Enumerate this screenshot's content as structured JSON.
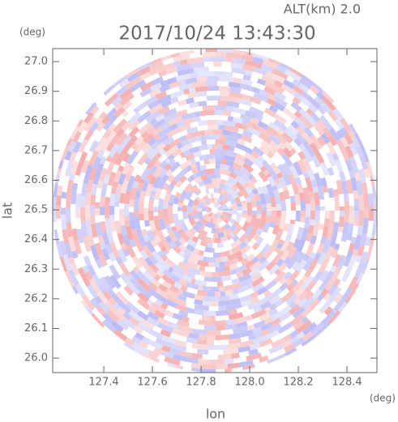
{
  "chart_data": {
    "type": "ppi",
    "title": "2017/10/24 13:43:30",
    "subtitle": "ALT(km) 2.0",
    "xlabel": "lon",
    "ylabel": "lat",
    "x_unit": "(deg)",
    "y_unit": "(deg)",
    "xlim": [
      127.19,
      128.523
    ],
    "ylim": [
      25.951,
      27.044
    ],
    "xticks": [
      127.4,
      127.6,
      127.8,
      {
        "value": 128.0,
        "label": "128.0"
      },
      128.2,
      128.4
    ],
    "yticks": [
      {
        "value": 26.0,
        "label": "26.0"
      },
      26.1,
      26.2,
      26.3,
      26.4,
      26.5,
      26.6,
      26.7,
      26.8,
      26.9,
      {
        "value": 27.0,
        "label": "27.0"
      }
    ],
    "colors": [
      "#f4aaaa",
      "#b8b8f4"
    ]
  }
}
